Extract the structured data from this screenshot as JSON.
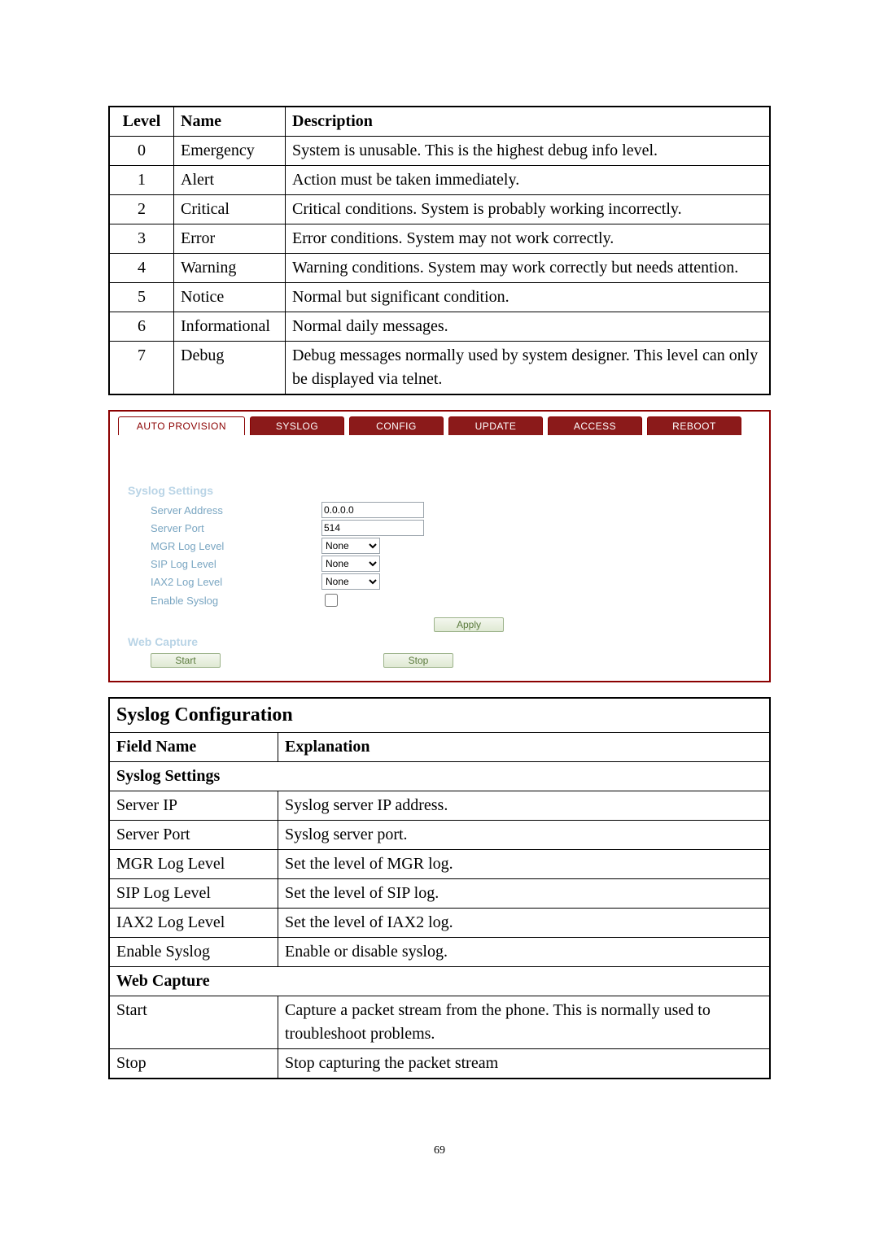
{
  "log_table": {
    "headers": [
      "Level",
      "Name",
      "Description"
    ],
    "rows": [
      {
        "level": "0",
        "name": "Emergency",
        "desc": "System is unusable.   This is the highest debug info level."
      },
      {
        "level": "1",
        "name": "Alert",
        "desc": "Action must be taken immediately."
      },
      {
        "level": "2",
        "name": "Critical",
        "desc": "Critical conditions. System is probably working incorrectly."
      },
      {
        "level": "3",
        "name": "Error",
        "desc": "Error conditions. System may not work correctly."
      },
      {
        "level": "4",
        "name": "Warning",
        "desc": "Warning conditions. System may work correctly but needs attention."
      },
      {
        "level": "5",
        "name": "Notice",
        "desc": "Normal but significant condition."
      },
      {
        "level": "6",
        "name": "Informational",
        "desc": "Normal daily messages."
      },
      {
        "level": "7",
        "name": "Debug",
        "desc": "Debug messages normally used by system designer.   This level can only be displayed via telnet."
      }
    ]
  },
  "panel": {
    "tabs": {
      "auto_provision": "AUTO PROVISION",
      "syslog": "SYSLOG",
      "config": "CONFIG",
      "update": "UPDATE",
      "access": "ACCESS",
      "reboot": "REBOOT"
    },
    "syslog_settings_title": "Syslog Settings",
    "labels": {
      "server_address": "Server Address",
      "server_port": "Server Port",
      "mgr_log_level": "MGR Log Level",
      "sip_log_level": "SIP Log Level",
      "iax2_log_level": "IAX2 Log Level",
      "enable_syslog": "Enable Syslog"
    },
    "values": {
      "server_address": "0.0.0.0",
      "server_port": "514",
      "mgr_log_level": "None",
      "sip_log_level": "None",
      "iax2_log_level": "None"
    },
    "apply_btn": "Apply",
    "web_capture_title": "Web Capture",
    "start_btn": "Start",
    "stop_btn": "Stop"
  },
  "cfg_table": {
    "title": "Syslog Configuration",
    "headers": {
      "field": "Field Name",
      "expl": "Explanation"
    },
    "section1": "Syslog Settings",
    "rows1": [
      {
        "field": "Server IP",
        "expl": "Syslog server IP address."
      },
      {
        "field": "Server Port",
        "expl": "Syslog server port."
      },
      {
        "field": "MGR Log Level",
        "expl": "Set the level of MGR log."
      },
      {
        "field": "SIP Log Level",
        "expl": "Set the level of SIP log."
      },
      {
        "field": "IAX2 Log Level",
        "expl": "Set the level of IAX2 log."
      },
      {
        "field": "Enable Syslog",
        "expl": "Enable or disable syslog."
      }
    ],
    "section2": "Web Capture",
    "rows2": [
      {
        "field": "Start",
        "expl": "Capture a packet stream from the phone.   This is normally used to troubleshoot problems."
      },
      {
        "field": "Stop",
        "expl": "Stop capturing the packet stream"
      }
    ]
  },
  "page_number": "69"
}
